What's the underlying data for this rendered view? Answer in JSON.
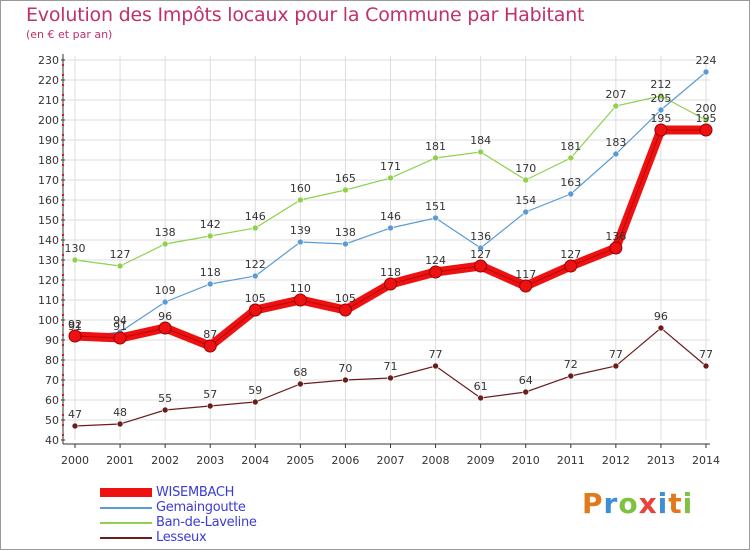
{
  "title": "Evolution des Impôts locaux pour la Commune par Habitant",
  "subtitle": "(en € et par an)",
  "brand": {
    "text": "Proxiti",
    "letter_colors": [
      "#e07a1a",
      "#3d8fd6",
      "#7fc241",
      "#e8423a",
      "#3d8fd6",
      "#e07a1a",
      "#7fc241"
    ]
  },
  "colors": {
    "grid": "#dddddd",
    "axis": "#333333",
    "wisembach": "#ee1111",
    "wisembach_dark": "#990000",
    "gemaingoutte": "#5b9bd5",
    "ban_de_laveline": "#8fd14f",
    "lesseux": "#6b1d1d"
  },
  "chart_data": {
    "type": "line",
    "title": "Evolution des Impôts locaux pour la Commune par Habitant",
    "subtitle": "(en € et par an)",
    "xlabel": "",
    "ylabel": "",
    "ylim": [
      40,
      230
    ],
    "ytick_step": 10,
    "grid": true,
    "legend_position": "bottom-left",
    "x": [
      "2000",
      "2001",
      "2002",
      "2003",
      "2004",
      "2005",
      "2006",
      "2007",
      "2008",
      "2009",
      "2010",
      "2011",
      "2012",
      "2013",
      "2014"
    ],
    "series": [
      {
        "name": "WISEMBACH",
        "key": "wisembach",
        "values": [
          92,
          91,
          96,
          87,
          105,
          110,
          105,
          118,
          124,
          127,
          117,
          127,
          136,
          195,
          195
        ],
        "label_texts": [
          "92",
          "91",
          "96",
          "87",
          "105",
          "110",
          "105",
          "118",
          "124",
          "127",
          "117",
          "127",
          "136",
          "195",
          "195"
        ]
      },
      {
        "name": "Gemaingoutte",
        "key": "gemaingoutte",
        "values": [
          91,
          94,
          109,
          118,
          122,
          139,
          138,
          146,
          151,
          136,
          154,
          163,
          183,
          205,
          224
        ],
        "label_texts": [
          "91",
          "94",
          "109",
          "118",
          "122",
          "139",
          "138",
          "146",
          "151",
          "136",
          "154",
          "163",
          "183",
          "205",
          "224"
        ]
      },
      {
        "name": "Ban-de-Laveline",
        "key": "ban_de_laveline",
        "values": [
          130,
          127,
          138,
          142,
          146,
          160,
          165,
          171,
          181,
          184,
          170,
          181,
          207,
          212,
          200
        ],
        "label_texts": [
          "130",
          "127",
          "138",
          "142",
          "146",
          "160",
          "165",
          "171",
          "181",
          "184",
          "170",
          "181",
          "207",
          "212",
          "200"
        ]
      },
      {
        "name": "Lesseux",
        "key": "lesseux",
        "values": [
          47,
          48,
          55,
          57,
          59,
          68,
          70,
          71,
          77,
          61,
          64,
          72,
          77,
          96,
          77
        ],
        "label_texts": [
          "47",
          "48",
          "55",
          "57",
          "59",
          "68",
          "70",
          "71",
          "77",
          "61",
          "64",
          "72",
          "77",
          "96",
          "77"
        ]
      }
    ]
  }
}
